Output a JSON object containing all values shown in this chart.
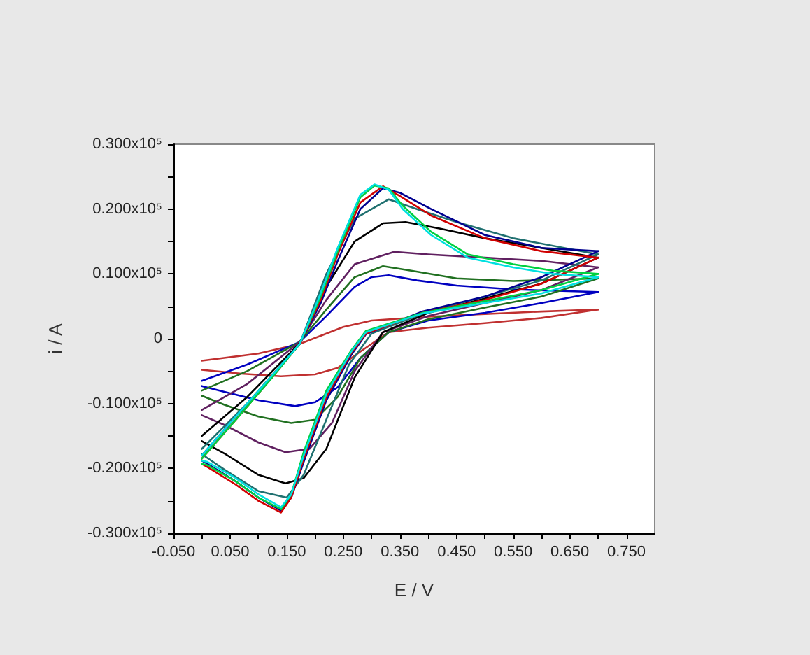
{
  "chart_data": {
    "type": "line",
    "xlabel": "E / V",
    "ylabel": "i / A",
    "xlim": [
      -0.05,
      0.8
    ],
    "ylim": [
      -30000,
      30000
    ],
    "xticks": [
      {
        "value": -0.05,
        "label": "-0.050"
      },
      {
        "value": 0,
        "label": null
      },
      {
        "value": 0.05,
        "label": "0.050"
      },
      {
        "value": 0.1,
        "label": null
      },
      {
        "value": 0.15,
        "label": "0.150"
      },
      {
        "value": 0.2,
        "label": null
      },
      {
        "value": 0.25,
        "label": "0.250"
      },
      {
        "value": 0.3,
        "label": null
      },
      {
        "value": 0.35,
        "label": "0.350"
      },
      {
        "value": 0.4,
        "label": null
      },
      {
        "value": 0.45,
        "label": "0.450"
      },
      {
        "value": 0.5,
        "label": null
      },
      {
        "value": 0.55,
        "label": "0.550"
      },
      {
        "value": 0.6,
        "label": null
      },
      {
        "value": 0.65,
        "label": "0.650"
      },
      {
        "value": 0.7,
        "label": null
      },
      {
        "value": 0.75,
        "label": "0.750"
      }
    ],
    "yticks": [
      {
        "value": -30000,
        "label": "-0.300x10⁵"
      },
      {
        "value": -25000,
        "label": null
      },
      {
        "value": -20000,
        "label": "-0.200x10⁵"
      },
      {
        "value": -15000,
        "label": null
      },
      {
        "value": -10000,
        "label": "-0.100x10⁵"
      },
      {
        "value": -5000,
        "label": null
      },
      0,
      {
        "value": 5000,
        "label": null
      },
      {
        "value": 10000,
        "label": "0.100x10⁵"
      },
      {
        "value": 15000,
        "label": null
      },
      {
        "value": 20000,
        "label": "0.200x10⁵"
      },
      {
        "value": 25000,
        "label": null
      },
      {
        "value": 30000,
        "label": "0.300x10⁵"
      }
    ],
    "series": [
      {
        "color": "#c03030",
        "x": [
          0,
          0.1,
          0.173,
          0.25,
          0.3,
          0.4,
          0.5,
          0.6,
          0.7
        ],
        "values": [
          -3400,
          -2300,
          -800,
          1800,
          2800,
          3400,
          3800,
          4200,
          4500
        ]
      },
      {
        "color": "#c03030",
        "x": [
          0,
          0.07,
          0.14,
          0.2,
          0.24,
          0.28,
          0.33,
          0.4,
          0.5,
          0.6,
          0.7
        ],
        "values": [
          -4800,
          -5400,
          -5800,
          -5500,
          -4500,
          -2000,
          1000,
          1700,
          2400,
          3200,
          4500
        ]
      },
      {
        "color": "#0000c0",
        "x": [
          0,
          0.08,
          0.173,
          0.22,
          0.27,
          0.3,
          0.33,
          0.38,
          0.45,
          0.55,
          0.7
        ],
        "values": [
          -6500,
          -4000,
          -500,
          3500,
          8000,
          9500,
          9800,
          9000,
          8200,
          7600,
          7200
        ]
      },
      {
        "color": "#0000c0",
        "x": [
          0,
          0.04,
          0.1,
          0.165,
          0.2,
          0.24,
          0.28,
          0.33,
          0.4,
          0.5,
          0.6,
          0.7
        ],
        "values": [
          -7300,
          -8200,
          -9500,
          -10400,
          -9800,
          -7500,
          -3000,
          1000,
          2800,
          4000,
          5500,
          7200
        ]
      },
      {
        "color": "#207020",
        "x": [
          0,
          0.08,
          0.173,
          0.22,
          0.27,
          0.32,
          0.37,
          0.45,
          0.55,
          0.7
        ],
        "values": [
          -8000,
          -5000,
          -500,
          4500,
          9500,
          11200,
          10500,
          9300,
          8900,
          9300
        ]
      },
      {
        "color": "#207020",
        "x": [
          0,
          0.04,
          0.1,
          0.158,
          0.2,
          0.24,
          0.28,
          0.33,
          0.4,
          0.5,
          0.6,
          0.7
        ],
        "values": [
          -8800,
          -10200,
          -12000,
          -13000,
          -12500,
          -9000,
          -3000,
          1000,
          3000,
          4800,
          6500,
          9300
        ]
      },
      {
        "color": "#602060",
        "x": [
          0,
          0.08,
          0.173,
          0.22,
          0.27,
          0.34,
          0.4,
          0.5,
          0.6,
          0.7
        ],
        "values": [
          -11000,
          -7000,
          -500,
          6000,
          11500,
          13400,
          13000,
          12500,
          12000,
          11000
        ]
      },
      {
        "color": "#602060",
        "x": [
          0,
          0.04,
          0.1,
          0.148,
          0.19,
          0.23,
          0.27,
          0.32,
          0.4,
          0.5,
          0.6,
          0.7
        ],
        "values": [
          -11800,
          -13300,
          -16000,
          -17500,
          -17000,
          -13000,
          -5000,
          1000,
          3500,
          5500,
          7500,
          11000
        ]
      },
      {
        "color": "#000000",
        "x": [
          0,
          0.08,
          0.173,
          0.22,
          0.27,
          0.32,
          0.36,
          0.42,
          0.5,
          0.6,
          0.7
        ],
        "values": [
          -15000,
          -9000,
          -700,
          8000,
          15000,
          17800,
          18000,
          17000,
          15500,
          14000,
          12500
        ]
      },
      {
        "color": "#000000",
        "x": [
          0,
          0.04,
          0.1,
          0.148,
          0.18,
          0.22,
          0.27,
          0.32,
          0.4,
          0.5,
          0.6,
          0.7
        ],
        "values": [
          -15800,
          -17700,
          -21000,
          -22300,
          -21500,
          -17000,
          -6000,
          1000,
          4000,
          6200,
          8500,
          12500
        ]
      },
      {
        "color": "#207070",
        "x": [
          0,
          0.08,
          0.173,
          0.22,
          0.27,
          0.33,
          0.38,
          0.45,
          0.55,
          0.7
        ],
        "values": [
          -17000,
          -10000,
          -800,
          10000,
          18500,
          21500,
          20000,
          18000,
          15500,
          13000
        ]
      },
      {
        "color": "#207070",
        "x": [
          0,
          0.04,
          0.1,
          0.15,
          0.18,
          0.22,
          0.26,
          0.3,
          0.4,
          0.5,
          0.6,
          0.7
        ],
        "values": [
          -17800,
          -20200,
          -23500,
          -24500,
          -21000,
          -12500,
          -4000,
          800,
          4200,
          6500,
          9000,
          13000
        ]
      },
      {
        "color": "#000090",
        "x": [
          0,
          0.06,
          0.124,
          0.173,
          0.21,
          0.24,
          0.28,
          0.32,
          0.35,
          0.405,
          0.5,
          0.6,
          0.7
        ],
        "values": [
          -18000,
          -12000,
          -5800,
          -800,
          5500,
          12000,
          20000,
          23200,
          22500,
          20000,
          16000,
          14000,
          13500
        ]
      },
      {
        "color": "#000090",
        "x": [
          0,
          0.01,
          0.06,
          0.1,
          0.14,
          0.158,
          0.18,
          0.22,
          0.264,
          0.29,
          0.39,
          0.5,
          0.6,
          0.7
        ],
        "values": [
          -18800,
          -19300,
          -22000,
          -24500,
          -26500,
          -24500,
          -19000,
          -9500,
          -2500,
          700,
          4200,
          6500,
          9500,
          13500
        ]
      },
      {
        "color": "#d00000",
        "x": [
          0,
          0.06,
          0.124,
          0.173,
          0.21,
          0.24,
          0.28,
          0.32,
          0.35,
          0.405,
          0.5,
          0.6,
          0.7
        ],
        "values": [
          -18500,
          -12500,
          -6000,
          -800,
          6000,
          13000,
          21000,
          23500,
          22000,
          19000,
          15500,
          13500,
          12500
        ]
      },
      {
        "color": "#d00000",
        "x": [
          0,
          0.01,
          0.06,
          0.1,
          0.14,
          0.158,
          0.18,
          0.22,
          0.264,
          0.29,
          0.39,
          0.5,
          0.6,
          0.7
        ],
        "values": [
          -19300,
          -19800,
          -22500,
          -25000,
          -26800,
          -24500,
          -18500,
          -9000,
          -2200,
          800,
          4000,
          6000,
          8500,
          12500
        ]
      },
      {
        "color": "#00d040",
        "x": [
          0,
          0.06,
          0.124,
          0.173,
          0.21,
          0.24,
          0.28,
          0.305,
          0.33,
          0.355,
          0.405,
          0.47,
          0.55,
          0.62,
          0.7
        ],
        "values": [
          -18500,
          -12500,
          -6000,
          -800,
          6500,
          13500,
          21800,
          23600,
          23200,
          20500,
          16500,
          13000,
          11500,
          10500,
          10000
        ]
      },
      {
        "color": "#00d040",
        "x": [
          0,
          0.01,
          0.06,
          0.1,
          0.14,
          0.158,
          0.18,
          0.22,
          0.264,
          0.29,
          0.39,
          0.5,
          0.6,
          0.7
        ],
        "values": [
          -19300,
          -19500,
          -22000,
          -24500,
          -26300,
          -24000,
          -17500,
          -8000,
          -1800,
          1200,
          4000,
          5800,
          7500,
          10000
        ]
      },
      {
        "color": "#00e0e0",
        "x": [
          0,
          0.06,
          0.124,
          0.173,
          0.21,
          0.24,
          0.28,
          0.305,
          0.33,
          0.355,
          0.405,
          0.47,
          0.55,
          0.62,
          0.7
        ],
        "values": [
          -18000,
          -12000,
          -5700,
          -800,
          7000,
          14000,
          22200,
          23800,
          23000,
          20000,
          16000,
          12500,
          11000,
          10000,
          9500
        ]
      },
      {
        "color": "#00e0e0",
        "x": [
          0,
          0.01,
          0.06,
          0.1,
          0.14,
          0.158,
          0.18,
          0.22,
          0.264,
          0.29,
          0.39,
          0.5,
          0.6,
          0.7
        ],
        "values": [
          -18800,
          -19000,
          -21500,
          -24000,
          -26000,
          -24000,
          -18000,
          -8500,
          -2000,
          1000,
          3900,
          5500,
          7000,
          9500
        ]
      }
    ]
  }
}
